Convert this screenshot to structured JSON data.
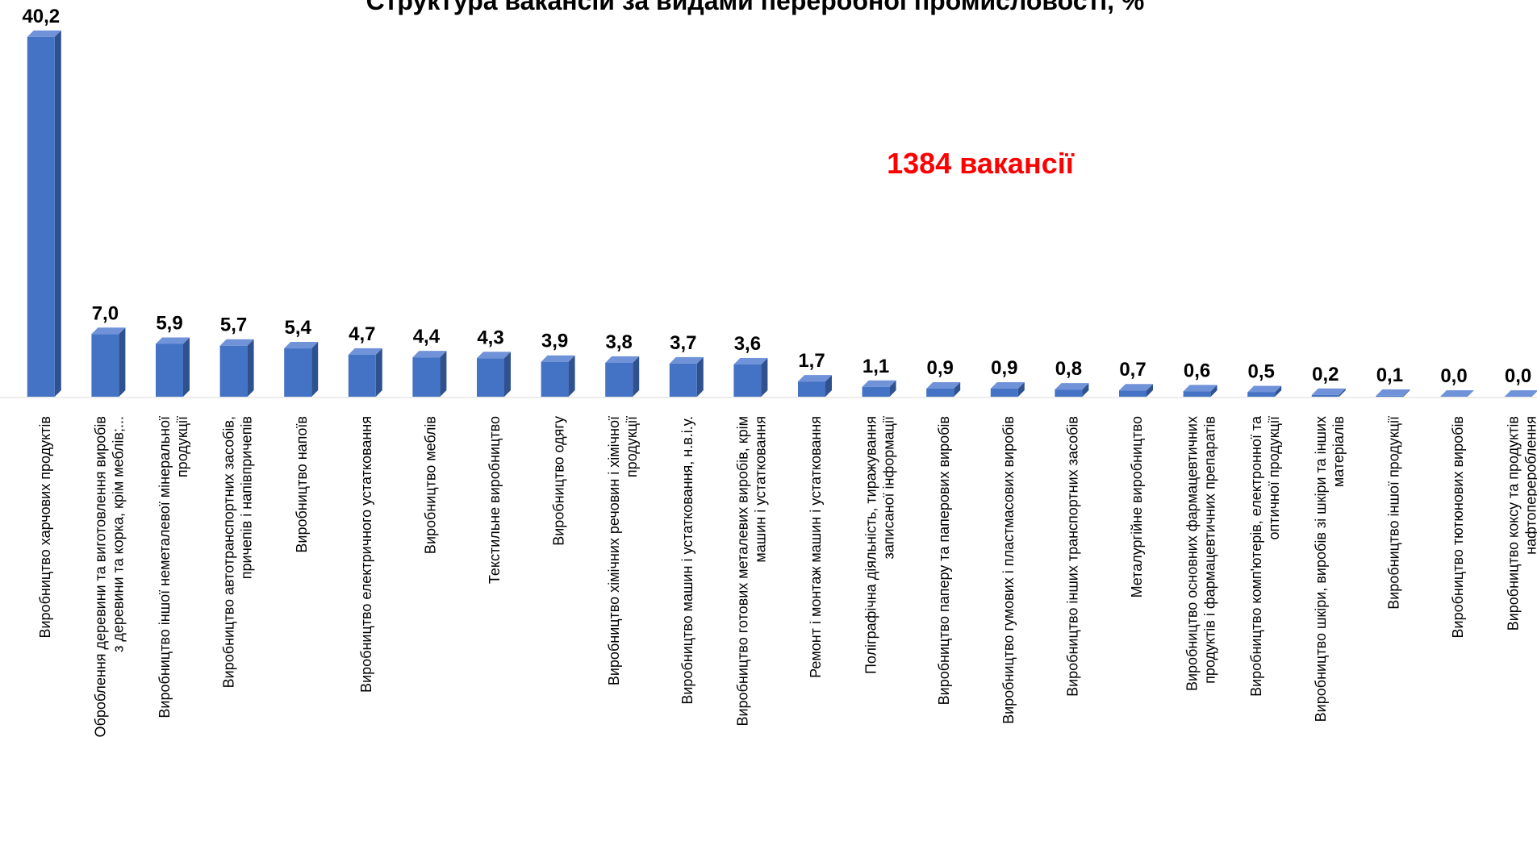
{
  "chart_data": {
    "type": "bar",
    "title": "Структура вакансій за видами переробної промисловості, %",
    "annotation": "1384 вакансії",
    "color": "#4472c4",
    "categories": [
      "Виробництво харчових продуктів",
      "Оброблення деревини та виготовлення виробів з деревини та корка, крім меблів;...",
      "Виробництво іншої неметалевої мінеральної продукції",
      "Виробництво автотранспортних засобів, причепів і напівпричепів",
      "Виробництво напоїв",
      "Виробництво електричного устатковання",
      "Виробництво меблів",
      "Текстильне виробництво",
      "Виробництво одягу",
      "Виробництво хімічних речовин і хімічної продукції",
      "Виробництво машин і устатковання, н.в.і.у.",
      "Виробництво готових металевих виробів, крім машин і устатковання",
      "Ремонт і монтаж машин і устатковання",
      "Поліграфічна діяльність, тиражування записаної інформації",
      "Виробництво паперу та паперових виробів",
      "Виробництво гумових і пластмасових виробів",
      "Виробництво інших транспортних засобів",
      "Металургійне виробництво",
      "Виробництво основних фармацевтичних продуктів і фармацевтичних препаратів",
      "Виробництво комп'ютерів, електронної та оптичної продукції",
      "Виробництво шкіри, виробів зі шкіри та інших матеріалів",
      "Виробництво іншої продукції",
      "Виробництво тютюнових виробів",
      "Виробництво коксу та продуктів нафтоперероблення"
    ],
    "values": [
      40.2,
      7.0,
      5.9,
      5.7,
      5.4,
      4.7,
      4.4,
      4.3,
      3.9,
      3.8,
      3.7,
      3.6,
      1.7,
      1.1,
      0.9,
      0.9,
      0.8,
      0.7,
      0.6,
      0.5,
      0.2,
      0.1,
      0.0,
      0.0
    ],
    "value_labels": [
      "40,2",
      "7,0",
      "5,9",
      "5,7",
      "5,4",
      "4,7",
      "4,4",
      "4,3",
      "3,9",
      "3,8",
      "3,7",
      "3,6",
      "1,7",
      "1,1",
      "0,9",
      "0,9",
      "0,8",
      "0,7",
      "0,6",
      "0,5",
      "0,2",
      "0,1",
      "0,0",
      "0,0"
    ]
  }
}
